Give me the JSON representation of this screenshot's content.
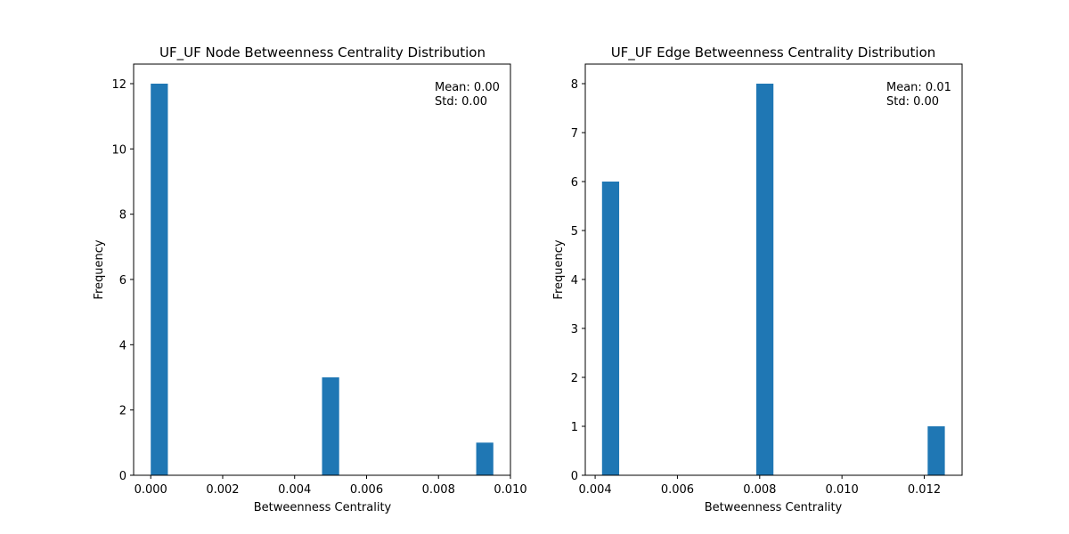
{
  "chart_data": [
    {
      "type": "bar",
      "title": "UF_UF Node Betweenness Centrality Distribution",
      "xlabel": "Betweenness Centrality",
      "ylabel": "Frequency",
      "xlim": [
        -0.000476,
        0.01
      ],
      "ylim": [
        0,
        12.6
      ],
      "xticks": [
        0.0,
        0.002,
        0.004,
        0.006,
        0.008,
        0.01
      ],
      "xtick_labels": [
        "0.000",
        "0.002",
        "0.004",
        "0.006",
        "0.008",
        "0.010"
      ],
      "yticks": [
        0,
        2,
        4,
        6,
        8,
        10,
        12
      ],
      "ytick_labels": [
        "0",
        "2",
        "4",
        "6",
        "8",
        "10",
        "12"
      ],
      "bar_width": 0.000476,
      "bars": [
        {
          "x": 0.0,
          "value": 12
        },
        {
          "x": 0.004762,
          "value": 3
        },
        {
          "x": 0.009048,
          "value": 1
        }
      ],
      "color": "#1f77b4",
      "annotation": [
        "Mean: 0.00",
        "Std: 0.00"
      ],
      "grid": false
    },
    {
      "type": "bar",
      "title": "UF_UF Edge Betweenness Centrality Distribution",
      "xlabel": "Betweenness Centrality",
      "ylabel": "Frequency",
      "xlim": [
        0.00376,
        0.01292
      ],
      "ylim": [
        0,
        8.4
      ],
      "xticks": [
        0.004,
        0.006,
        0.008,
        0.01,
        0.012
      ],
      "xtick_labels": [
        "0.004",
        "0.006",
        "0.008",
        "0.010",
        "0.012"
      ],
      "yticks": [
        0,
        1,
        2,
        3,
        4,
        5,
        6,
        7,
        8
      ],
      "ytick_labels": [
        "0",
        "1",
        "2",
        "3",
        "4",
        "5",
        "6",
        "7",
        "8"
      ],
      "bar_width": 0.000417,
      "bars": [
        {
          "x": 0.004167,
          "value": 6
        },
        {
          "x": 0.007917,
          "value": 8
        },
        {
          "x": 0.012083,
          "value": 1
        }
      ],
      "color": "#1f77b4",
      "annotation": [
        "Mean: 0.01",
        "Std: 0.00"
      ],
      "grid": false
    }
  ]
}
